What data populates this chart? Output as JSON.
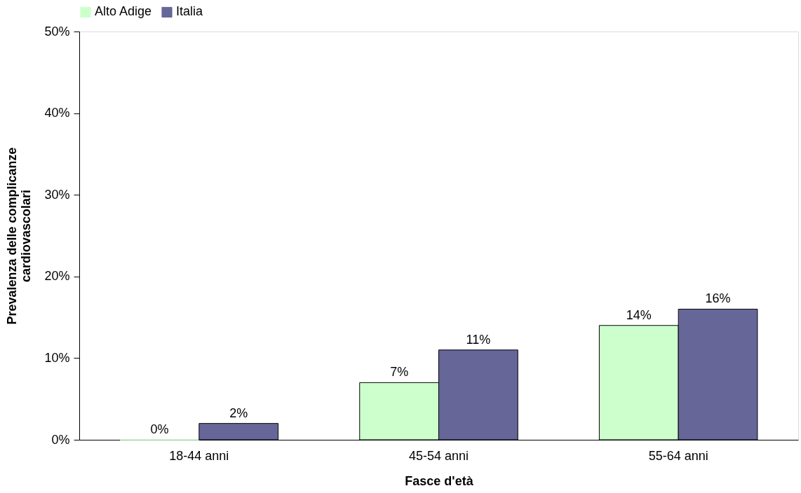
{
  "chart_data": {
    "type": "bar",
    "categories": [
      "18-44 anni",
      "45-54 anni",
      "55-64 anni"
    ],
    "series": [
      {
        "name": "Alto Adige",
        "color": "#ccffcc",
        "values": [
          0,
          7,
          14
        ],
        "value_labels": [
          "0%",
          "7%",
          "14%"
        ]
      },
      {
        "name": "Italia",
        "color": "#666699",
        "values": [
          2,
          11,
          16
        ],
        "value_labels": [
          "2%",
          "11%",
          "16%"
        ]
      }
    ],
    "xlabel": "Fasce d'età",
    "ylabel": "Prevalenza delle complicanze\ncardiovascolari",
    "ylim": [
      0,
      50
    ],
    "yticks": [
      {
        "value": 0,
        "label": "0%"
      },
      {
        "value": 10,
        "label": "10%"
      },
      {
        "value": 20,
        "label": "20%"
      },
      {
        "value": 30,
        "label": "30%"
      },
      {
        "value": 40,
        "label": "40%"
      },
      {
        "value": 50,
        "label": "50%"
      }
    ],
    "grid": false,
    "legend": "top"
  }
}
